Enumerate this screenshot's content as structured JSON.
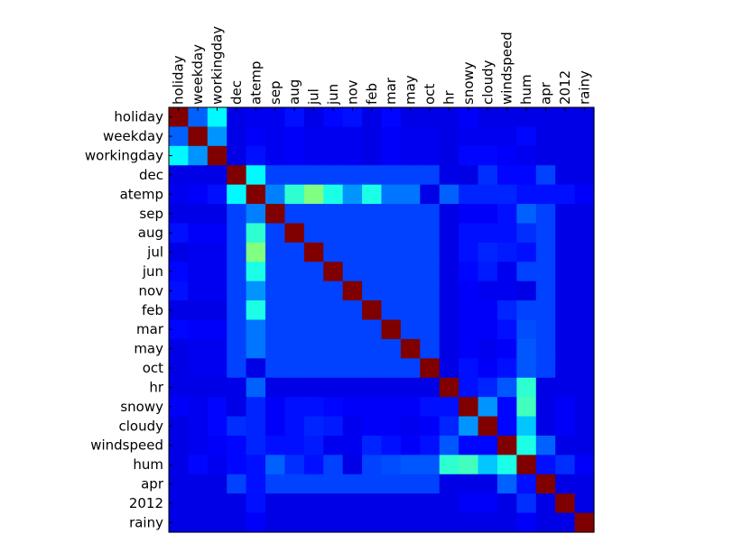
{
  "chart_data": {
    "type": "heatmap",
    "title": "",
    "xlabel": "",
    "ylabel": "",
    "labels": [
      "holiday",
      "weekday",
      "workingday",
      "dec",
      "atemp",
      "sep",
      "aug",
      "jul",
      "jun",
      "nov",
      "feb",
      "mar",
      "may",
      "oct",
      "hr",
      "snowy",
      "cloudy",
      "windspeed",
      "hum",
      "apr",
      "2012",
      "rainy"
    ],
    "x_tick_position": "top",
    "y_tick_position": "left",
    "colormap": "jet",
    "vmin": 0,
    "vmax": 1,
    "matrix": [
      [
        1.0,
        0.22,
        0.37,
        0.1,
        0.11,
        0.11,
        0.14,
        0.1,
        0.13,
        0.14,
        0.1,
        0.13,
        0.1,
        0.1,
        0.1,
        0.12,
        0.1,
        0.1,
        0.1,
        0.1,
        0.1,
        0.1
      ],
      [
        0.22,
        1.0,
        0.27,
        0.1,
        0.12,
        0.11,
        0.12,
        0.11,
        0.11,
        0.11,
        0.1,
        0.12,
        0.11,
        0.11,
        0.1,
        0.11,
        0.11,
        0.11,
        0.13,
        0.1,
        0.1,
        0.1
      ],
      [
        0.37,
        0.27,
        1.0,
        0.1,
        0.14,
        0.11,
        0.12,
        0.11,
        0.11,
        0.11,
        0.1,
        0.12,
        0.11,
        0.11,
        0.1,
        0.13,
        0.13,
        0.12,
        0.11,
        0.1,
        0.1,
        0.1
      ],
      [
        0.1,
        0.1,
        0.1,
        1.0,
        0.37,
        0.19,
        0.19,
        0.19,
        0.19,
        0.19,
        0.19,
        0.19,
        0.19,
        0.19,
        0.1,
        0.1,
        0.17,
        0.13,
        0.13,
        0.19,
        0.1,
        0.1
      ],
      [
        0.11,
        0.12,
        0.14,
        0.37,
        1.0,
        0.25,
        0.42,
        0.5,
        0.4,
        0.27,
        0.4,
        0.24,
        0.24,
        0.1,
        0.22,
        0.16,
        0.16,
        0.16,
        0.14,
        0.14,
        0.14,
        0.12
      ],
      [
        0.1,
        0.1,
        0.1,
        0.19,
        0.25,
        1.0,
        0.19,
        0.19,
        0.19,
        0.19,
        0.19,
        0.19,
        0.19,
        0.19,
        0.1,
        0.12,
        0.12,
        0.14,
        0.22,
        0.19,
        0.1,
        0.1
      ],
      [
        0.14,
        0.12,
        0.12,
        0.19,
        0.42,
        0.19,
        1.0,
        0.19,
        0.19,
        0.19,
        0.19,
        0.19,
        0.19,
        0.19,
        0.1,
        0.14,
        0.14,
        0.14,
        0.17,
        0.19,
        0.1,
        0.1
      ],
      [
        0.1,
        0.11,
        0.11,
        0.19,
        0.5,
        0.19,
        0.19,
        1.0,
        0.19,
        0.19,
        0.19,
        0.19,
        0.19,
        0.19,
        0.1,
        0.14,
        0.16,
        0.15,
        0.14,
        0.19,
        0.1,
        0.1
      ],
      [
        0.13,
        0.11,
        0.11,
        0.19,
        0.4,
        0.19,
        0.19,
        0.19,
        1.0,
        0.19,
        0.19,
        0.19,
        0.19,
        0.19,
        0.1,
        0.13,
        0.15,
        0.11,
        0.19,
        0.19,
        0.1,
        0.1
      ],
      [
        0.14,
        0.11,
        0.11,
        0.19,
        0.27,
        0.19,
        0.19,
        0.19,
        0.19,
        1.0,
        0.19,
        0.19,
        0.19,
        0.19,
        0.1,
        0.12,
        0.11,
        0.11,
        0.1,
        0.19,
        0.1,
        0.1
      ],
      [
        0.1,
        0.1,
        0.1,
        0.19,
        0.4,
        0.19,
        0.19,
        0.19,
        0.19,
        0.19,
        1.0,
        0.19,
        0.19,
        0.19,
        0.1,
        0.12,
        0.12,
        0.16,
        0.19,
        0.19,
        0.1,
        0.1
      ],
      [
        0.13,
        0.12,
        0.12,
        0.19,
        0.24,
        0.19,
        0.19,
        0.19,
        0.19,
        0.19,
        0.19,
        1.0,
        0.19,
        0.19,
        0.1,
        0.12,
        0.12,
        0.14,
        0.2,
        0.19,
        0.1,
        0.1
      ],
      [
        0.1,
        0.11,
        0.11,
        0.19,
        0.24,
        0.19,
        0.19,
        0.19,
        0.19,
        0.19,
        0.19,
        0.19,
        1.0,
        0.19,
        0.1,
        0.12,
        0.11,
        0.12,
        0.21,
        0.19,
        0.1,
        0.1
      ],
      [
        0.1,
        0.11,
        0.11,
        0.19,
        0.1,
        0.19,
        0.19,
        0.19,
        0.19,
        0.19,
        0.19,
        0.19,
        0.19,
        1.0,
        0.1,
        0.14,
        0.12,
        0.14,
        0.21,
        0.19,
        0.1,
        0.1
      ],
      [
        0.1,
        0.1,
        0.1,
        0.1,
        0.22,
        0.1,
        0.1,
        0.1,
        0.1,
        0.1,
        0.1,
        0.1,
        0.1,
        0.1,
        1.0,
        0.14,
        0.16,
        0.21,
        0.42,
        0.1,
        0.1,
        0.1
      ],
      [
        0.12,
        0.11,
        0.13,
        0.1,
        0.16,
        0.12,
        0.14,
        0.14,
        0.13,
        0.12,
        0.12,
        0.12,
        0.12,
        0.14,
        0.14,
        1.0,
        0.27,
        0.13,
        0.44,
        0.1,
        0.12,
        0.1
      ],
      [
        0.1,
        0.11,
        0.13,
        0.17,
        0.16,
        0.12,
        0.14,
        0.16,
        0.15,
        0.11,
        0.12,
        0.12,
        0.11,
        0.12,
        0.16,
        0.27,
        1.0,
        0.13,
        0.32,
        0.1,
        0.12,
        0.1
      ],
      [
        0.1,
        0.11,
        0.12,
        0.13,
        0.16,
        0.14,
        0.14,
        0.15,
        0.11,
        0.11,
        0.16,
        0.14,
        0.12,
        0.14,
        0.21,
        0.13,
        0.13,
        1.0,
        0.4,
        0.22,
        0.1,
        0.1
      ],
      [
        0.1,
        0.13,
        0.11,
        0.13,
        0.14,
        0.22,
        0.17,
        0.14,
        0.19,
        0.1,
        0.19,
        0.2,
        0.21,
        0.21,
        0.42,
        0.44,
        0.32,
        0.4,
        1.0,
        0.14,
        0.17,
        0.12
      ],
      [
        0.1,
        0.1,
        0.1,
        0.19,
        0.14,
        0.19,
        0.19,
        0.19,
        0.19,
        0.19,
        0.19,
        0.19,
        0.19,
        0.19,
        0.1,
        0.1,
        0.1,
        0.22,
        0.14,
        1.0,
        0.1,
        0.1
      ],
      [
        0.1,
        0.1,
        0.1,
        0.1,
        0.14,
        0.1,
        0.1,
        0.1,
        0.1,
        0.1,
        0.1,
        0.1,
        0.1,
        0.1,
        0.1,
        0.12,
        0.12,
        0.1,
        0.17,
        0.1,
        1.0,
        0.1
      ],
      [
        0.1,
        0.1,
        0.1,
        0.1,
        0.12,
        0.1,
        0.1,
        0.1,
        0.1,
        0.1,
        0.1,
        0.1,
        0.1,
        0.1,
        0.1,
        0.1,
        0.1,
        0.1,
        0.12,
        0.1,
        0.1,
        1.0
      ]
    ]
  }
}
